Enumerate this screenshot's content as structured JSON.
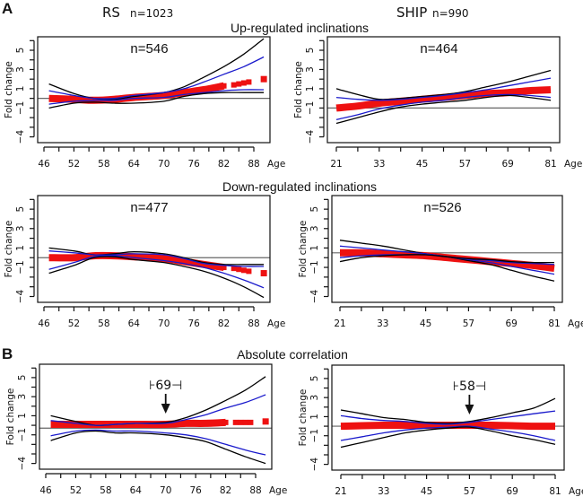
{
  "figure": {
    "section_labels": [
      "A",
      "B"
    ],
    "cohorts": [
      {
        "name": "RS",
        "n_label": "n=1023"
      },
      {
        "name": "SHIP",
        "n_label": "n=990"
      }
    ],
    "row_titles": [
      "Up-regulated inclinations",
      "Down-regulated inclinations",
      "Absolute correlation"
    ],
    "colors": {
      "fit": "#ee1111",
      "inner_ci": "#1a1acc",
      "outer_ci": "#000000",
      "reference": "#666666"
    }
  },
  "chart_data": [
    {
      "type": "line",
      "id": "rs-up",
      "cohort": "RS",
      "row": "Up-regulated inclinations",
      "n_label": "n=546",
      "xlabel": "Age",
      "ylabel": "Fold change",
      "xticks": [
        46,
        52,
        58,
        64,
        70,
        76,
        82,
        88
      ],
      "xlim": [
        46,
        88
      ],
      "yticks": [
        5,
        3,
        1,
        -1,
        -4
      ],
      "ylim": [
        -4.6,
        6.4
      ],
      "reference_y": 0,
      "series": [
        {
          "name": "outer-upper",
          "role": "outer",
          "x": [
            47,
            52,
            56,
            60,
            64,
            70,
            74,
            78,
            82,
            86,
            90
          ],
          "y": [
            1.5,
            0.5,
            0.0,
            -0.1,
            0.2,
            0.6,
            1.2,
            2.2,
            3.3,
            4.6,
            6.2
          ]
        },
        {
          "name": "inner-upper",
          "role": "inner",
          "x": [
            47,
            52,
            56,
            60,
            64,
            70,
            74,
            78,
            82,
            86,
            90
          ],
          "y": [
            0.8,
            0.3,
            0.0,
            0.0,
            0.3,
            0.6,
            1.0,
            1.7,
            2.5,
            3.3,
            4.3
          ]
        },
        {
          "name": "inner-lower",
          "role": "inner",
          "x": [
            47,
            52,
            56,
            60,
            64,
            70,
            74,
            78,
            82,
            86,
            90
          ],
          "y": [
            -0.6,
            -0.3,
            -0.2,
            -0.2,
            0.0,
            0.1,
            0.4,
            0.6,
            0.8,
            0.9,
            0.9
          ]
        },
        {
          "name": "outer-lower",
          "role": "outer",
          "x": [
            47,
            52,
            56,
            60,
            64,
            70,
            74,
            78,
            82,
            86,
            90
          ],
          "y": [
            -1.0,
            -0.5,
            -0.4,
            -0.5,
            -0.5,
            -0.3,
            0.2,
            0.5,
            0.6,
            0.6,
            0.6
          ]
        },
        {
          "name": "fit",
          "role": "fit",
          "x": [
            47,
            52,
            56,
            60,
            64,
            70,
            74,
            78,
            82,
            84,
            85,
            86,
            87,
            90
          ],
          "y": [
            0.0,
            -0.1,
            -0.2,
            -0.1,
            0.1,
            0.3,
            0.6,
            0.9,
            1.3,
            1.4,
            1.5,
            1.6,
            1.7,
            2.0
          ]
        }
      ]
    },
    {
      "type": "line",
      "id": "ship-up",
      "cohort": "SHIP",
      "row": "Up-regulated inclinations",
      "n_label": "n=464",
      "xlabel": "Age",
      "ylabel": "Fold change",
      "xticks": [
        21,
        33,
        45,
        57,
        69,
        81
      ],
      "xlim": [
        21,
        81
      ],
      "yticks": [
        5,
        3,
        1,
        -1,
        -4
      ],
      "ylim": [
        -4.6,
        6.4
      ],
      "reference_y": -1,
      "series": [
        {
          "name": "outer-upper",
          "role": "outer",
          "x": [
            21,
            27,
            33,
            39,
            45,
            51,
            57,
            63,
            69,
            75,
            81
          ],
          "y": [
            1.0,
            0.4,
            -0.1,
            0.0,
            0.2,
            0.4,
            0.7,
            1.2,
            1.7,
            2.3,
            2.9
          ]
        },
        {
          "name": "inner-upper",
          "role": "inner",
          "x": [
            21,
            27,
            33,
            39,
            45,
            51,
            57,
            63,
            69,
            75,
            81
          ],
          "y": [
            0.1,
            -0.1,
            -0.2,
            -0.1,
            0.1,
            0.3,
            0.6,
            0.9,
            1.3,
            1.7,
            2.1
          ]
        },
        {
          "name": "inner-lower",
          "role": "inner",
          "x": [
            21,
            27,
            33,
            39,
            45,
            51,
            57,
            63,
            69,
            75,
            81
          ],
          "y": [
            -2.2,
            -1.7,
            -1.1,
            -0.7,
            -0.4,
            -0.2,
            0.1,
            0.3,
            0.4,
            0.3,
            0.1
          ]
        },
        {
          "name": "outer-lower",
          "role": "outer",
          "x": [
            21,
            27,
            33,
            39,
            45,
            51,
            57,
            63,
            69,
            75,
            81
          ],
          "y": [
            -2.6,
            -2.0,
            -1.4,
            -0.9,
            -0.6,
            -0.4,
            -0.2,
            0.1,
            0.3,
            0.1,
            -0.2
          ]
        },
        {
          "name": "fit",
          "role": "fit",
          "x": [
            21,
            27,
            33,
            39,
            45,
            51,
            57,
            63,
            69,
            75,
            81
          ],
          "y": [
            -1.0,
            -0.8,
            -0.5,
            -0.3,
            -0.1,
            0.1,
            0.3,
            0.5,
            0.6,
            0.8,
            0.9
          ]
        }
      ]
    },
    {
      "type": "line",
      "id": "rs-down",
      "cohort": "RS",
      "row": "Down-regulated inclinations",
      "n_label": "n=477",
      "xlabel": "Age",
      "ylabel": "Fold change",
      "xticks": [
        46,
        52,
        58,
        64,
        70,
        76,
        82,
        88
      ],
      "xlim": [
        46,
        88
      ],
      "yticks": [
        5,
        3,
        1,
        -1,
        -4
      ],
      "ylim": [
        -4.6,
        6.4
      ],
      "reference_y": 0,
      "series": [
        {
          "name": "outer-upper",
          "role": "outer",
          "x": [
            47,
            52,
            56,
            60,
            64,
            70,
            74,
            78,
            82,
            86,
            90
          ],
          "y": [
            1.0,
            0.7,
            0.3,
            0.4,
            0.6,
            0.4,
            0.0,
            -0.5,
            -0.7,
            -0.7,
            -0.7
          ]
        },
        {
          "name": "inner-upper",
          "role": "inner",
          "x": [
            47,
            52,
            56,
            60,
            64,
            70,
            74,
            78,
            82,
            86,
            90
          ],
          "y": [
            0.7,
            0.5,
            0.3,
            0.3,
            0.4,
            0.3,
            -0.1,
            -0.6,
            -0.8,
            -0.9,
            -0.9
          ]
        },
        {
          "name": "inner-lower",
          "role": "inner",
          "x": [
            47,
            52,
            56,
            60,
            64,
            70,
            74,
            78,
            82,
            86,
            90
          ],
          "y": [
            -1.2,
            -0.5,
            0.1,
            0.2,
            0.0,
            -0.3,
            -0.6,
            -1.0,
            -1.6,
            -2.3,
            -3.1
          ]
        },
        {
          "name": "outer-lower",
          "role": "outer",
          "x": [
            47,
            52,
            56,
            60,
            64,
            70,
            74,
            78,
            82,
            86,
            90
          ],
          "y": [
            -1.6,
            -0.8,
            0.0,
            0.1,
            -0.2,
            -0.5,
            -0.9,
            -1.4,
            -2.1,
            -3.0,
            -4.1
          ]
        },
        {
          "name": "fit",
          "role": "fit",
          "x": [
            47,
            52,
            56,
            60,
            64,
            70,
            74,
            78,
            82,
            84,
            85,
            86,
            87,
            90
          ],
          "y": [
            0.0,
            0.0,
            0.2,
            0.2,
            0.1,
            -0.1,
            -0.4,
            -0.7,
            -1.0,
            -1.1,
            -1.2,
            -1.3,
            -1.4,
            -1.6
          ]
        }
      ]
    },
    {
      "type": "line",
      "id": "ship-down",
      "cohort": "SHIP",
      "row": "Down-regulated inclinations",
      "n_label": "n=526",
      "xlabel": "Age",
      "ylabel": "Fold change",
      "xticks": [
        21,
        33,
        45,
        57,
        69,
        81
      ],
      "xlim": [
        21,
        81
      ],
      "yticks": [
        5,
        3,
        1,
        -1,
        -4
      ],
      "ylim": [
        -4.6,
        6.4
      ],
      "reference_y": 0.5,
      "series": [
        {
          "name": "outer-upper",
          "role": "outer",
          "x": [
            21,
            27,
            33,
            39,
            45,
            51,
            57,
            63,
            69,
            75,
            81
          ],
          "y": [
            1.8,
            1.5,
            1.2,
            0.8,
            0.4,
            0.1,
            -0.3,
            -0.7,
            -1.3,
            -1.9,
            -2.4
          ]
        },
        {
          "name": "inner-upper",
          "role": "inner",
          "x": [
            21,
            27,
            33,
            39,
            45,
            51,
            57,
            63,
            69,
            75,
            81
          ],
          "y": [
            1.2,
            1.0,
            0.8,
            0.6,
            0.4,
            0.1,
            -0.2,
            -0.5,
            -0.9,
            -1.3,
            -1.7
          ]
        },
        {
          "name": "inner-lower",
          "role": "inner",
          "x": [
            21,
            27,
            33,
            39,
            45,
            51,
            57,
            63,
            69,
            75,
            81
          ],
          "y": [
            0.0,
            0.2,
            0.3,
            0.3,
            0.3,
            0.1,
            -0.1,
            -0.3,
            -0.5,
            -0.6,
            -0.7
          ]
        },
        {
          "name": "outer-lower",
          "role": "outer",
          "x": [
            21,
            27,
            33,
            39,
            45,
            51,
            57,
            63,
            69,
            75,
            81
          ],
          "y": [
            -0.4,
            0.0,
            0.2,
            0.3,
            0.3,
            0.1,
            -0.1,
            -0.2,
            -0.4,
            -0.5,
            -0.5
          ]
        },
        {
          "name": "fit",
          "role": "fit",
          "x": [
            21,
            27,
            33,
            39,
            45,
            51,
            57,
            63,
            69,
            75,
            81
          ],
          "y": [
            0.5,
            0.5,
            0.4,
            0.3,
            0.2,
            0.0,
            -0.2,
            -0.4,
            -0.6,
            -0.8,
            -1.1
          ]
        }
      ]
    },
    {
      "type": "line",
      "id": "rs-abs",
      "cohort": "RS",
      "row": "Absolute correlation",
      "n_label": "",
      "annotation": {
        "text": "⊦69⊣",
        "arrow_x": 70
      },
      "xlabel": "Age",
      "ylabel": "Fold change",
      "xticks": [
        46,
        52,
        58,
        64,
        70,
        76,
        82,
        88
      ],
      "xlim": [
        46,
        88
      ],
      "yticks": [
        5,
        3,
        1,
        -1,
        -4
      ],
      "ylim": [
        -4.6,
        6.4
      ],
      "reference_y": -0.3,
      "series": [
        {
          "name": "outer-upper",
          "role": "outer",
          "x": [
            47,
            52,
            56,
            60,
            64,
            70,
            74,
            78,
            82,
            86,
            90
          ],
          "y": [
            1.0,
            0.4,
            0.0,
            0.1,
            0.2,
            0.3,
            0.8,
            1.6,
            2.6,
            3.7,
            5.1
          ]
        },
        {
          "name": "inner-upper",
          "role": "inner",
          "x": [
            47,
            52,
            56,
            60,
            64,
            70,
            74,
            78,
            82,
            86,
            90
          ],
          "y": [
            0.5,
            0.2,
            0.0,
            0.1,
            0.2,
            0.2,
            0.6,
            1.1,
            1.8,
            2.4,
            3.2
          ]
        },
        {
          "name": "inner-lower",
          "role": "inner",
          "x": [
            47,
            52,
            56,
            60,
            64,
            70,
            74,
            78,
            82,
            86,
            90
          ],
          "y": [
            -1.1,
            -0.6,
            -0.5,
            -0.6,
            -0.6,
            -0.8,
            -1.0,
            -1.4,
            -2.0,
            -2.6,
            -3.1
          ]
        },
        {
          "name": "outer-lower",
          "role": "outer",
          "x": [
            47,
            52,
            56,
            60,
            64,
            70,
            74,
            78,
            82,
            86,
            90
          ],
          "y": [
            -1.6,
            -0.8,
            -0.6,
            -0.8,
            -0.8,
            -1.0,
            -1.3,
            -1.7,
            -2.5,
            -3.3,
            -4.0
          ]
        },
        {
          "name": "fit",
          "role": "fit",
          "x": [
            47,
            52,
            56,
            60,
            64,
            70,
            74,
            78,
            82,
            84,
            85,
            86,
            87,
            90
          ],
          "y": [
            0.1,
            0.1,
            0.1,
            0.1,
            0.1,
            0.1,
            0.2,
            0.2,
            0.3,
            0.3,
            0.3,
            0.3,
            0.3,
            0.4
          ]
        }
      ]
    },
    {
      "type": "line",
      "id": "ship-abs",
      "cohort": "SHIP",
      "row": "Absolute correlation",
      "n_label": "",
      "annotation": {
        "text": "⊦58⊣",
        "arrow_x": 57
      },
      "xlabel": "Age",
      "ylabel": "Fold change",
      "xticks": [
        21,
        33,
        45,
        57,
        69,
        81
      ],
      "xlim": [
        21,
        81
      ],
      "yticks": [
        5,
        3,
        1,
        -1,
        -4
      ],
      "ylim": [
        -4.6,
        6.4
      ],
      "reference_y": 0,
      "series": [
        {
          "name": "outer-upper",
          "role": "outer",
          "x": [
            21,
            27,
            33,
            39,
            45,
            51,
            57,
            63,
            69,
            75,
            81
          ],
          "y": [
            1.7,
            1.3,
            0.9,
            0.7,
            0.4,
            0.3,
            0.5,
            0.9,
            1.4,
            1.9,
            2.9
          ]
        },
        {
          "name": "inner-upper",
          "role": "inner",
          "x": [
            21,
            27,
            33,
            39,
            45,
            51,
            57,
            63,
            69,
            75,
            81
          ],
          "y": [
            1.1,
            0.8,
            0.6,
            0.5,
            0.3,
            0.2,
            0.4,
            0.7,
            1.0,
            1.3,
            1.6
          ]
        },
        {
          "name": "inner-lower",
          "role": "inner",
          "x": [
            21,
            27,
            33,
            39,
            45,
            51,
            57,
            63,
            69,
            75,
            81
          ],
          "y": [
            -1.5,
            -1.1,
            -0.7,
            -0.4,
            -0.2,
            -0.1,
            0.0,
            -0.3,
            -0.6,
            -1.0,
            -1.5
          ]
        },
        {
          "name": "outer-lower",
          "role": "outer",
          "x": [
            21,
            27,
            33,
            39,
            45,
            51,
            57,
            63,
            69,
            75,
            81
          ],
          "y": [
            -2.2,
            -1.7,
            -1.2,
            -0.7,
            -0.4,
            -0.2,
            -0.1,
            -0.5,
            -1.0,
            -1.4,
            -1.9
          ]
        },
        {
          "name": "fit",
          "role": "fit",
          "x": [
            21,
            27,
            33,
            39,
            45,
            51,
            57,
            63,
            69,
            75,
            81
          ],
          "y": [
            0.0,
            0.05,
            0.1,
            0.1,
            0.1,
            0.1,
            0.1,
            0.1,
            0.05,
            0.0,
            0.0
          ]
        }
      ]
    }
  ]
}
